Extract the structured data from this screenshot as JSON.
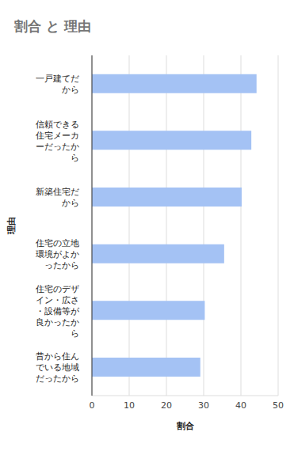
{
  "chart_data": {
    "type": "bar",
    "title": "割合 と 理由",
    "x_label": "割合",
    "y_label": "理由",
    "orientation": "horizontal",
    "categories": [
      "一戸建てだから",
      "信頼できる住宅メーカーだったから",
      "新築住宅だから",
      "住宅の立地環境がよかったから",
      "住宅のデザイン・広さ・設備等が良かったから",
      "昔から住んでいる地域だったから"
    ],
    "values": [
      44.2,
      42.8,
      40.2,
      35.5,
      30.3,
      29.1
    ],
    "color": "#a4c2f4",
    "xlim": [
      0,
      50
    ],
    "xticks": [
      0,
      10,
      20,
      30,
      40,
      50
    ],
    "grid": true
  }
}
